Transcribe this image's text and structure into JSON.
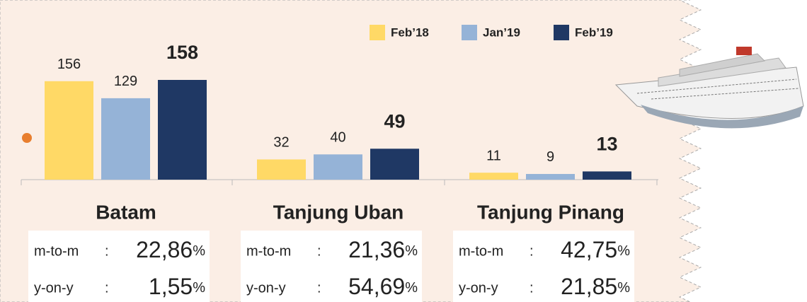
{
  "chart_data": {
    "type": "bar",
    "categories": [
      "Batam",
      "Tanjung Uban",
      "Tanjung Pinang"
    ],
    "series": [
      {
        "name": "Feb’18",
        "color": "#ffd966",
        "values": [
          156,
          32,
          11
        ]
      },
      {
        "name": "Jan’19",
        "color": "#95b3d7",
        "values": [
          129,
          40,
          9
        ]
      },
      {
        "name": "Feb’19",
        "color": "#1f3864",
        "values": [
          158,
          49,
          13
        ]
      }
    ],
    "stats": [
      [
        {
          "label": "m-to-m",
          "separator": ":",
          "value": "22,86",
          "unit": "%"
        },
        {
          "label": "y-on-y",
          "separator": ":",
          "value": "1,55",
          "unit": "%"
        }
      ],
      [
        {
          "label": "m-to-m",
          "separator": ":",
          "value": "21,36",
          "unit": "%"
        },
        {
          "label": "y-on-y",
          "separator": ":",
          "value": "54,69",
          "unit": "%"
        }
      ],
      [
        {
          "label": "m-to-m",
          "separator": ":",
          "value": "42,75",
          "unit": "%"
        },
        {
          "label": "y-on-y",
          "separator": ":",
          "value": "21,85",
          "unit": "%"
        }
      ]
    ]
  }
}
